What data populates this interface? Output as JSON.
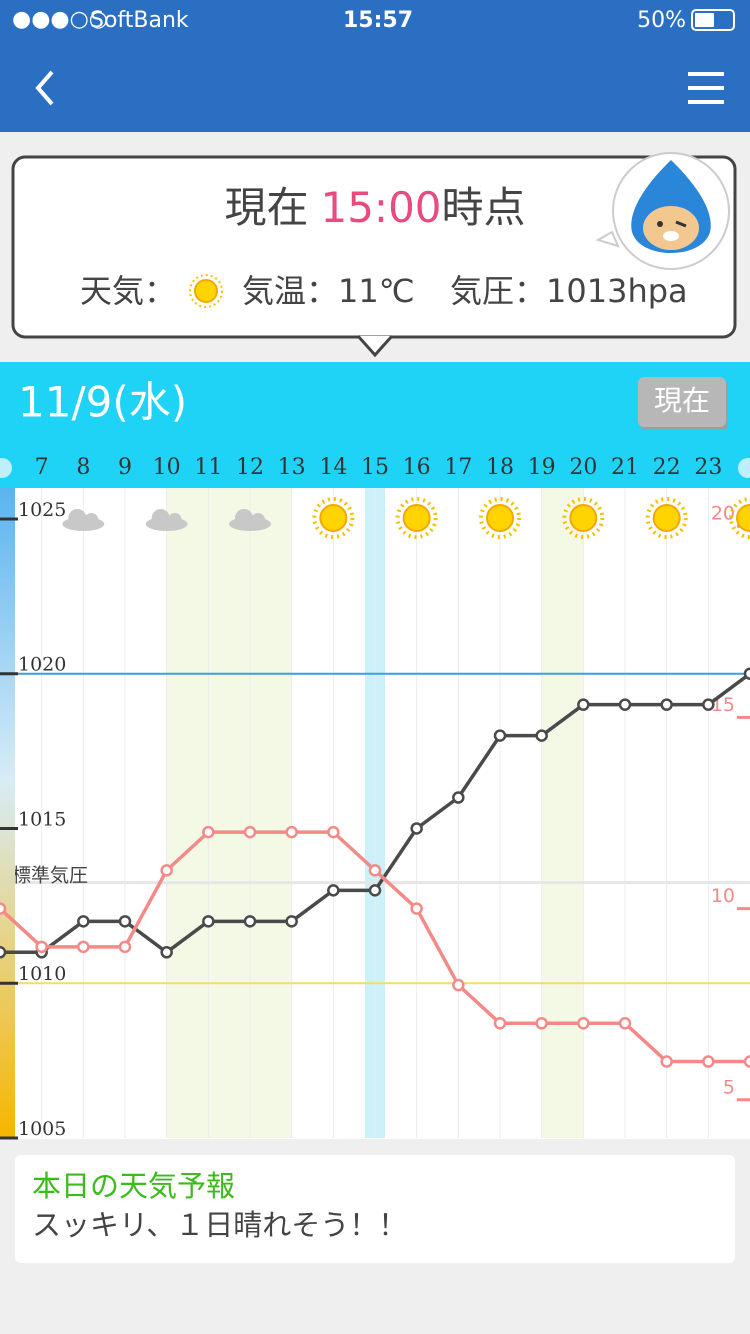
{
  "status_bar": {
    "carrier": "SoftBank",
    "time": "15:57",
    "battery": "50%"
  },
  "current": {
    "label": "現在",
    "time": "15:00",
    "suffix": "時点",
    "weather_label": "天気：",
    "temperature": "気温：11℃",
    "pressure": "気圧：1013hpa"
  },
  "date_bar": {
    "date": "11/9(水)",
    "button": "現在"
  },
  "chart_data": {
    "type": "line",
    "x": [
      6,
      7,
      8,
      9,
      10,
      11,
      12,
      13,
      14,
      15,
      16,
      17,
      18,
      19,
      20,
      21,
      22,
      23,
      24
    ],
    "xlim": [
      6,
      24
    ],
    "xticks": [
      7,
      8,
      9,
      10,
      11,
      12,
      13,
      14,
      15,
      16,
      17,
      18,
      19,
      20,
      21,
      22,
      23
    ],
    "series": [
      {
        "color": "#4a4a4a",
        "values": [
          1011,
          1011,
          1012,
          1012,
          1011,
          1012,
          1012,
          1012,
          1013,
          1013,
          1015,
          1016,
          1018,
          1018,
          1019,
          1019,
          1019,
          1019,
          1020
        ]
      },
      {
        "color": "#f48a88",
        "axis": "y2",
        "values": [
          10,
          9,
          9,
          9,
          11,
          12,
          12,
          12,
          12,
          11,
          10,
          8,
          7,
          7,
          7,
          7,
          6,
          6,
          6
        ]
      }
    ],
    "ylim": [
      1005,
      1026
    ],
    "yticks": [
      1005,
      1010,
      1015,
      1020,
      1025
    ],
    "y2lim": [
      4,
      21
    ],
    "y2ticks": [
      5,
      10,
      15,
      20
    ],
    "hlines": [
      {
        "value": 1020,
        "color": "#3a9ee0"
      },
      {
        "value": 1010,
        "color": "#f5dc6a"
      }
    ],
    "standard": {
      "value": 1013.25,
      "label": "標準気圧"
    },
    "icons": {
      "x": [
        8,
        10,
        12,
        14,
        16,
        18,
        20,
        22,
        24
      ],
      "types": [
        "cloud",
        "cloud",
        "cloud",
        "sun",
        "sun",
        "sun",
        "sun",
        "sun",
        "sun"
      ]
    },
    "bands": [
      [
        10,
        13
      ],
      [
        19,
        20
      ]
    ],
    "highlight": 15
  },
  "forecast": {
    "title": "本日の天気予報",
    "text": "スッキリ、１日晴れそう！！"
  }
}
